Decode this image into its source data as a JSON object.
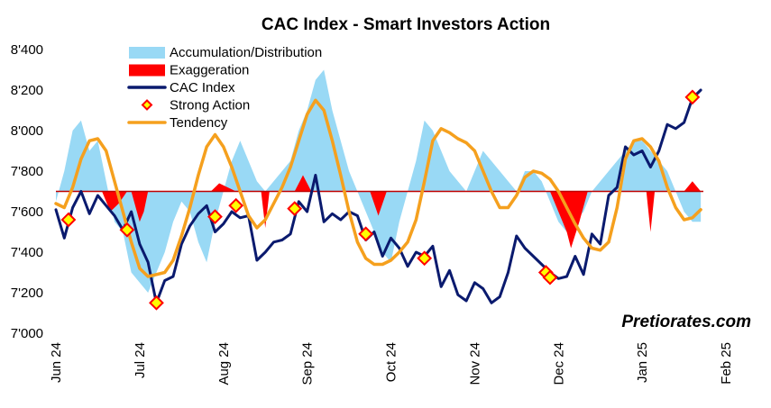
{
  "chart_data": {
    "type": "line",
    "title": "CAC Index - Smart Investors Action",
    "watermark": "Pretiorates.com",
    "ylim": [
      7000,
      8400
    ],
    "yticks": [
      {
        "value": 7000,
        "label": "7'000"
      },
      {
        "value": 7200,
        "label": "7'200"
      },
      {
        "value": 7400,
        "label": "7'400"
      },
      {
        "value": 7600,
        "label": "7'600"
      },
      {
        "value": 7800,
        "label": "7'800"
      },
      {
        "value": 8000,
        "label": "8'000"
      },
      {
        "value": 8200,
        "label": "8'200"
      },
      {
        "value": 8400,
        "label": "8'400"
      }
    ],
    "xlim": [
      0,
      8
    ],
    "xticks": [
      {
        "value": 0,
        "label": "Jun 24"
      },
      {
        "value": 1,
        "label": "Jul 24"
      },
      {
        "value": 2,
        "label": "Aug 24"
      },
      {
        "value": 3,
        "label": "Sep 24"
      },
      {
        "value": 4,
        "label": "Oct 24"
      },
      {
        "value": 5,
        "label": "Nov 24"
      },
      {
        "value": 6,
        "label": "Dec 24"
      },
      {
        "value": 7,
        "label": "Jan 25"
      },
      {
        "value": 8,
        "label": "Feb 25"
      }
    ],
    "baseline": 7700,
    "legend_position": "top-left",
    "legend": [
      {
        "name": "Accumulation/Distribution",
        "kind": "area",
        "color": "#99D9F5"
      },
      {
        "name": "Exaggeration",
        "kind": "area",
        "color": "#FF0000"
      },
      {
        "name": "CAC Index",
        "kind": "line",
        "color": "#0A1A6E"
      },
      {
        "name": "Strong Action",
        "kind": "marker",
        "color": "#FF0000"
      },
      {
        "name": "Tendency",
        "kind": "line",
        "color": "#F5A01E"
      }
    ],
    "series": [
      {
        "name": "Accumulation/Distribution",
        "type": "area",
        "color": "#99D9F5",
        "x": [
          0,
          0.1,
          0.2,
          0.3,
          0.4,
          0.5,
          0.6,
          0.7,
          0.8,
          0.9,
          1.0,
          1.1,
          1.2,
          1.3,
          1.4,
          1.5,
          1.6,
          1.7,
          1.8,
          1.9,
          2.0,
          2.1,
          2.2,
          2.3,
          2.4,
          2.5,
          2.6,
          2.7,
          2.8,
          2.9,
          3.0,
          3.1,
          3.2,
          3.3,
          3.4,
          3.5,
          3.6,
          3.7,
          3.8,
          3.9,
          4.0,
          4.1,
          4.2,
          4.3,
          4.4,
          4.5,
          4.6,
          4.7,
          4.8,
          4.9,
          5.0,
          5.1,
          5.2,
          5.3,
          5.4,
          5.5,
          5.6,
          5.7,
          5.8,
          5.9,
          6.0,
          6.1,
          6.2,
          6.3,
          6.4,
          6.5,
          6.6,
          6.7,
          6.8,
          6.9,
          7.0,
          7.1,
          7.2,
          7.3,
          7.4,
          7.5,
          7.6,
          7.7
        ],
        "values": [
          7650,
          7800,
          8000,
          8050,
          7900,
          7950,
          7750,
          7550,
          7500,
          7300,
          7250,
          7200,
          7300,
          7400,
          7550,
          7650,
          7600,
          7450,
          7350,
          7550,
          7700,
          7850,
          7950,
          7850,
          7750,
          7700,
          7750,
          7800,
          7850,
          8000,
          8100,
          8250,
          8300,
          8100,
          7950,
          7800,
          7700,
          7600,
          7500,
          7400,
          7350,
          7550,
          7700,
          7850,
          8050,
          8000,
          7900,
          7800,
          7750,
          7700,
          7800,
          7900,
          7850,
          7800,
          7750,
          7700,
          7800,
          7800,
          7750,
          7650,
          7550,
          7500,
          7550,
          7600,
          7700,
          7750,
          7800,
          7850,
          7900,
          7950,
          7950,
          7900,
          7850,
          7800,
          7700,
          7600,
          7550,
          7550
        ]
      },
      {
        "name": "Exaggeration",
        "type": "area",
        "color": "#FF0000",
        "segments": [
          {
            "x": [
              0.55,
              0.65,
              0.75,
              0.85
            ],
            "values": [
              7700,
              7600,
              7640,
              7700
            ]
          },
          {
            "x": [
              0.9,
              1.0,
              1.05,
              1.1
            ],
            "values": [
              7700,
              7550,
              7600,
              7700
            ]
          },
          {
            "x": [
              1.85,
              1.95,
              2.05,
              2.15
            ],
            "values": [
              7700,
              7740,
              7720,
              7700
            ]
          },
          {
            "x": [
              2.45,
              2.5,
              2.55
            ],
            "values": [
              7700,
              7520,
              7700
            ]
          },
          {
            "x": [
              2.85,
              2.95,
              3.05
            ],
            "values": [
              7700,
              7780,
              7700
            ]
          },
          {
            "x": [
              3.75,
              3.85,
              3.95
            ],
            "values": [
              7700,
              7580,
              7700
            ]
          },
          {
            "x": [
              5.9,
              6.0,
              6.1,
              6.15,
              6.25,
              6.35
            ],
            "values": [
              7700,
              7600,
              7500,
              7420,
              7550,
              7700
            ]
          },
          {
            "x": [
              7.05,
              7.1,
              7.15
            ],
            "values": [
              7700,
              7500,
              7700
            ]
          },
          {
            "x": [
              7.5,
              7.6,
              7.7
            ],
            "values": [
              7700,
              7750,
              7700
            ]
          }
        ]
      },
      {
        "name": "CAC Index",
        "type": "line",
        "color": "#0A1A6E",
        "x": [
          0,
          0.1,
          0.2,
          0.3,
          0.4,
          0.5,
          0.6,
          0.7,
          0.8,
          0.9,
          1.0,
          1.1,
          1.2,
          1.3,
          1.4,
          1.5,
          1.6,
          1.7,
          1.8,
          1.9,
          2.0,
          2.1,
          2.2,
          2.3,
          2.4,
          2.5,
          2.6,
          2.7,
          2.8,
          2.9,
          3.0,
          3.1,
          3.2,
          3.3,
          3.4,
          3.5,
          3.6,
          3.7,
          3.8,
          3.9,
          4.0,
          4.1,
          4.2,
          4.3,
          4.4,
          4.5,
          4.6,
          4.7,
          4.8,
          4.9,
          5.0,
          5.1,
          5.2,
          5.3,
          5.4,
          5.5,
          5.6,
          5.7,
          5.8,
          5.9,
          6.0,
          6.1,
          6.2,
          6.3,
          6.4,
          6.5,
          6.6,
          6.7,
          6.8,
          6.9,
          7.0,
          7.1,
          7.2,
          7.3,
          7.4,
          7.5,
          7.6,
          7.7
        ],
        "values": [
          7610,
          7470,
          7620,
          7700,
          7590,
          7680,
          7630,
          7580,
          7510,
          7600,
          7440,
          7350,
          7150,
          7260,
          7280,
          7440,
          7530,
          7590,
          7630,
          7500,
          7540,
          7600,
          7570,
          7580,
          7360,
          7400,
          7450,
          7460,
          7490,
          7650,
          7600,
          7780,
          7550,
          7590,
          7560,
          7600,
          7580,
          7460,
          7500,
          7380,
          7470,
          7420,
          7330,
          7400,
          7380,
          7430,
          7230,
          7310,
          7190,
          7160,
          7250,
          7220,
          7150,
          7180,
          7300,
          7480,
          7420,
          7380,
          7340,
          7300,
          7270,
          7280,
          7380,
          7290,
          7490,
          7440,
          7680,
          7720,
          7920,
          7880,
          7900,
          7820,
          7900,
          8030,
          8010,
          8040,
          8160,
          8200
        ]
      },
      {
        "name": "Tendency",
        "type": "line",
        "color": "#F5A01E",
        "x": [
          0,
          0.1,
          0.2,
          0.3,
          0.4,
          0.5,
          0.6,
          0.7,
          0.8,
          0.9,
          1.0,
          1.1,
          1.2,
          1.3,
          1.4,
          1.5,
          1.6,
          1.7,
          1.8,
          1.9,
          2.0,
          2.1,
          2.2,
          2.3,
          2.4,
          2.5,
          2.6,
          2.7,
          2.8,
          2.9,
          3.0,
          3.1,
          3.2,
          3.3,
          3.4,
          3.5,
          3.6,
          3.7,
          3.8,
          3.9,
          4.0,
          4.1,
          4.2,
          4.3,
          4.4,
          4.5,
          4.6,
          4.7,
          4.8,
          4.9,
          5.0,
          5.1,
          5.2,
          5.3,
          5.4,
          5.5,
          5.6,
          5.7,
          5.8,
          5.9,
          6.0,
          6.1,
          6.2,
          6.3,
          6.4,
          6.5,
          6.6,
          6.7,
          6.8,
          6.9,
          7.0,
          7.1,
          7.2,
          7.3,
          7.4,
          7.5,
          7.6,
          7.7
        ],
        "values": [
          7640,
          7620,
          7720,
          7860,
          7950,
          7960,
          7900,
          7750,
          7600,
          7450,
          7320,
          7280,
          7290,
          7300,
          7360,
          7480,
          7620,
          7780,
          7920,
          7980,
          7920,
          7820,
          7700,
          7580,
          7520,
          7560,
          7640,
          7720,
          7820,
          7950,
          8080,
          8150,
          8100,
          7950,
          7780,
          7600,
          7450,
          7370,
          7340,
          7340,
          7360,
          7400,
          7450,
          7560,
          7750,
          7950,
          8010,
          7990,
          7960,
          7940,
          7900,
          7800,
          7700,
          7620,
          7620,
          7680,
          7770,
          7800,
          7790,
          7760,
          7700,
          7620,
          7540,
          7470,
          7420,
          7410,
          7450,
          7620,
          7860,
          7950,
          7960,
          7920,
          7850,
          7720,
          7620,
          7560,
          7570,
          7610
        ]
      },
      {
        "name": "Strong Action",
        "type": "scatter",
        "color": "#FF0000",
        "x": [
          0.15,
          0.85,
          1.2,
          1.9,
          2.15,
          2.85,
          3.7,
          4.4,
          5.85,
          5.9,
          7.6
        ],
        "values": [
          7560,
          7510,
          7150,
          7575,
          7630,
          7615,
          7490,
          7370,
          7300,
          7275,
          8165
        ]
      }
    ]
  }
}
